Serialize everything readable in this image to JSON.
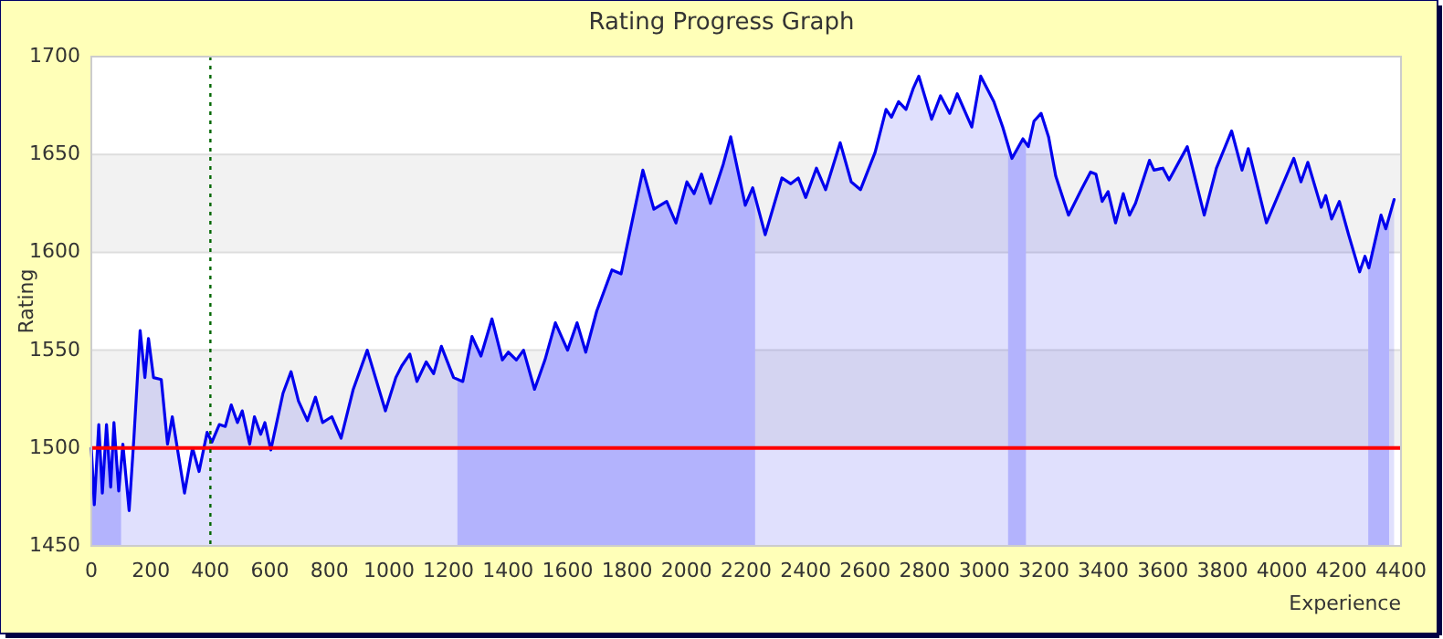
{
  "chart_data": {
    "type": "area",
    "title": "Rating Progress Graph",
    "xlabel": "Experience",
    "ylabel": "Rating",
    "xlim": [
      0,
      4400
    ],
    "xticks": [
      0,
      200,
      400,
      600,
      800,
      1000,
      1200,
      1400,
      1600,
      1800,
      2000,
      2200,
      2400,
      2600,
      2800,
      3000,
      3200,
      3400,
      3600,
      3800,
      4000,
      4200,
      4400
    ],
    "ylim": [
      1450,
      1700
    ],
    "yticks": [
      1450,
      1500,
      1550,
      1600,
      1650,
      1700
    ],
    "grid": "y",
    "line_style": "solid",
    "ref_lines": [
      {
        "axis": "y",
        "value": 1500,
        "color": "#ff0000",
        "line_style": "solid"
      },
      {
        "axis": "x",
        "value": 400,
        "color": "#006600",
        "line_style": "dotted"
      }
    ],
    "bands": [
      {
        "axis": "x",
        "from": 0,
        "to": 100,
        "color": "#ccccff"
      },
      {
        "axis": "x",
        "from": 1230,
        "to": 2230,
        "color": "#ccccff"
      },
      {
        "axis": "x",
        "from": 3080,
        "to": 3140,
        "color": "#ccccff"
      },
      {
        "axis": "x",
        "from": 4290,
        "to": 4360,
        "color": "#ccccff"
      }
    ],
    "series": [
      {
        "color": "#0000ee",
        "x": [
          0,
          10,
          25,
          37,
          51,
          65,
          76,
          92,
          106,
          127,
          143,
          164,
          180,
          192,
          209,
          235,
          256,
          272,
          313,
          340,
          362,
          389,
          405,
          430,
          450,
          470,
          491,
          507,
          532,
          548,
          569,
          583,
          603,
          644,
          671,
          696,
          726,
          753,
          777,
          808,
          839,
          880,
          927,
          988,
          1023,
          1043,
          1070,
          1094,
          1125,
          1150,
          1176,
          1217,
          1248,
          1279,
          1309,
          1346,
          1381,
          1401,
          1428,
          1452,
          1489,
          1524,
          1559,
          1600,
          1632,
          1661,
          1698,
          1749,
          1780,
          1853,
          1890,
          1933,
          1964,
          2001,
          2025,
          2050,
          2080,
          2123,
          2148,
          2197,
          2222,
          2264,
          2320,
          2350,
          2375,
          2400,
          2436,
          2467,
          2516,
          2553,
          2584,
          2633,
          2670,
          2688,
          2712,
          2737,
          2762,
          2780,
          2823,
          2853,
          2884,
          2909,
          2958,
          2988,
          3032,
          3062,
          3093,
          3130,
          3148,
          3167,
          3191,
          3216,
          3240,
          3283,
          3326,
          3357,
          3375,
          3396,
          3416,
          3441,
          3467,
          3488,
          3508,
          3555,
          3570,
          3600,
          3621,
          3682,
          3739,
          3780,
          3831,
          3866,
          3887,
          3948,
          4040,
          4064,
          4087,
          4132,
          4147,
          4167,
          4193,
          4224,
          4261,
          4279,
          4292,
          4333,
          4349,
          4377
        ],
        "values": [
          1500,
          1471,
          1512,
          1477,
          1512,
          1480,
          1513,
          1478,
          1502,
          1468,
          1505,
          1560,
          1536,
          1556,
          1536,
          1535,
          1502,
          1516,
          1477,
          1500,
          1488,
          1508,
          1503,
          1512,
          1511,
          1522,
          1513,
          1519,
          1502,
          1516,
          1507,
          1513,
          1499,
          1528,
          1539,
          1524,
          1514,
          1526,
          1513,
          1516,
          1505,
          1530,
          1550,
          1519,
          1536,
          1542,
          1548,
          1534,
          1544,
          1538,
          1552,
          1536,
          1534,
          1557,
          1547,
          1566,
          1545,
          1549,
          1545,
          1550,
          1530,
          1545,
          1564,
          1550,
          1564,
          1549,
          1570,
          1591,
          1589,
          1642,
          1622,
          1626,
          1615,
          1636,
          1630,
          1640,
          1625,
          1645,
          1659,
          1624,
          1633,
          1609,
          1638,
          1635,
          1638,
          1628,
          1643,
          1632,
          1656,
          1636,
          1632,
          1651,
          1673,
          1669,
          1677,
          1673,
          1684,
          1690,
          1668,
          1680,
          1671,
          1681,
          1664,
          1690,
          1677,
          1664,
          1648,
          1658,
          1654,
          1667,
          1671,
          1659,
          1639,
          1619,
          1632,
          1641,
          1640,
          1626,
          1631,
          1615,
          1630,
          1619,
          1625,
          1647,
          1642,
          1643,
          1637,
          1654,
          1619,
          1643,
          1662,
          1642,
          1653,
          1615,
          1648,
          1636,
          1646,
          1623,
          1629,
          1617,
          1626,
          1609,
          1590,
          1598,
          1592,
          1619,
          1612,
          1627
        ]
      }
    ]
  }
}
